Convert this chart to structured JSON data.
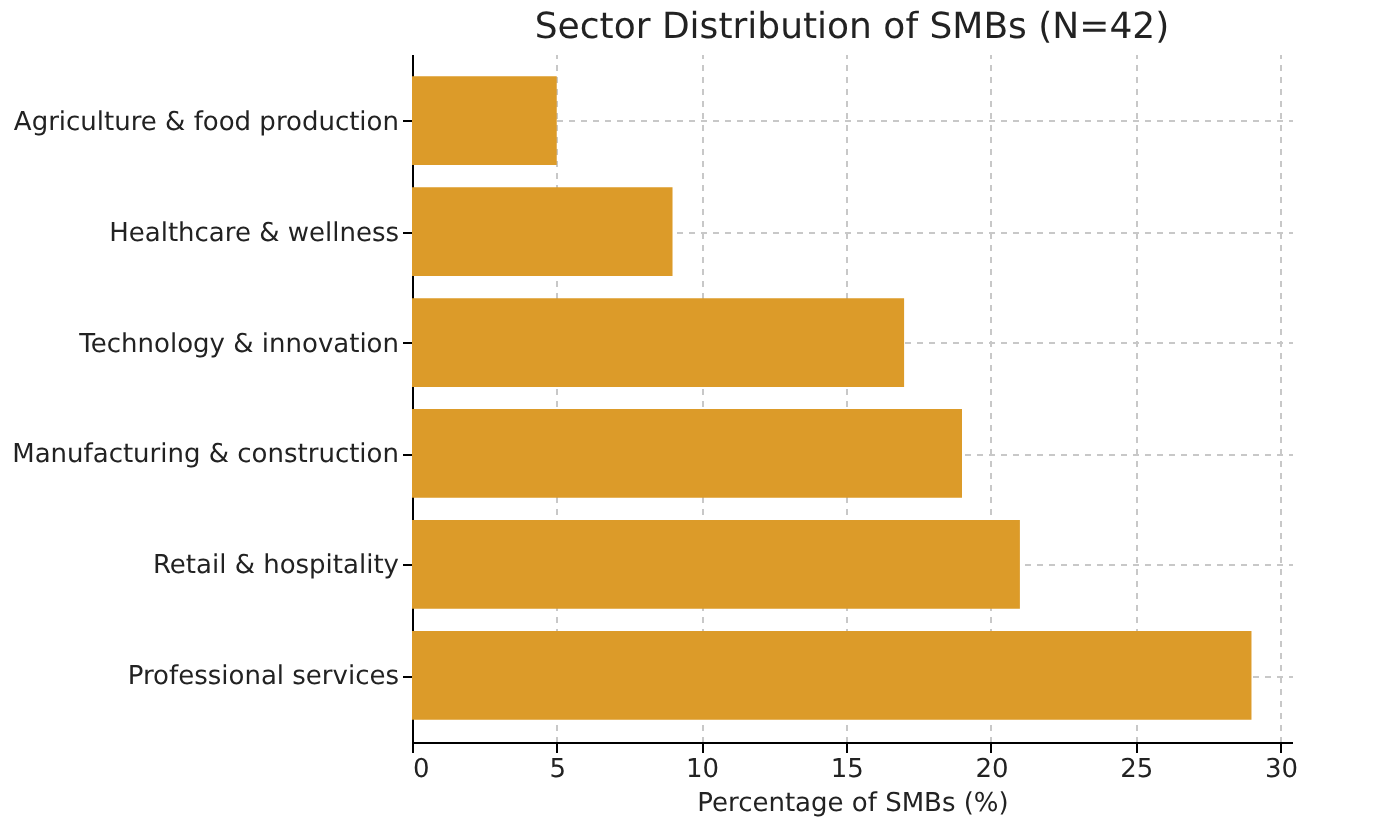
{
  "chart_data": {
    "type": "bar",
    "orientation": "horizontal",
    "title": "Sector Distribution of SMBs (N=42)",
    "categories": [
      "Agriculture & food production",
      "Healthcare & wellness",
      "Technology & innovation",
      "Manufacturing & construction",
      "Retail & hospitality",
      "Professional services"
    ],
    "values": [
      5,
      9,
      17,
      19,
      21,
      29
    ],
    "color": "#dc9b29",
    "xlabel": "Percentage of SMBs (%)",
    "xlim": [
      0,
      30.4
    ],
    "xticks": [
      0,
      5,
      10,
      15,
      20,
      25,
      30
    ],
    "grid": true
  }
}
